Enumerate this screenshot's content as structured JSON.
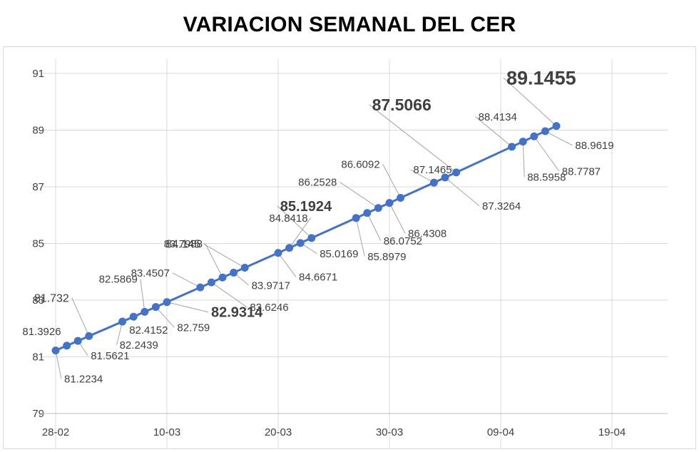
{
  "chart_data": {
    "type": "line",
    "title": "VARIACION SEMANAL DEL CER",
    "xlabel": "",
    "ylabel": "",
    "x_axis": {
      "type": "date",
      "min": "2022-02-28",
      "max": "2022-04-24",
      "ticks": [
        "2022-02-28",
        "2022-03-10",
        "2022-03-20",
        "2022-03-30",
        "2022-04-09",
        "2022-04-19"
      ],
      "tick_labels": [
        "28-02",
        "10-03",
        "20-03",
        "30-03",
        "09-04",
        "19-04"
      ]
    },
    "y_axis": {
      "min": 79,
      "max": 91,
      "ticks": [
        79,
        81,
        83,
        85,
        87,
        89,
        91
      ],
      "tick_labels": [
        "79",
        "81",
        "83",
        "85",
        "87",
        "89",
        "91"
      ]
    },
    "grid": {
      "horizontal": true,
      "vertical": true
    },
    "legend": "none",
    "series_color": "#4472c4",
    "series": [
      {
        "name": "",
        "points": [
          {
            "x": "2022-02-28",
            "y": 81.2234,
            "label": "81.2234"
          },
          {
            "x": "2022-03-01",
            "y": 81.3926,
            "label": "81.3926"
          },
          {
            "x": "2022-03-02",
            "y": 81.5621,
            "label": "81.5621"
          },
          {
            "x": "2022-03-03",
            "y": 81.732,
            "label": "81.732"
          },
          {
            "x": "2022-03-06",
            "y": 82.2439,
            "label": "82.2439"
          },
          {
            "x": "2022-03-07",
            "y": 82.4152,
            "label": "82.4152"
          },
          {
            "x": "2022-03-08",
            "y": 82.5869,
            "label": "82.5869"
          },
          {
            "x": "2022-03-09",
            "y": 82.759,
            "label": "82.759"
          },
          {
            "x": "2022-03-10",
            "y": 82.9314,
            "label": "82.9314"
          },
          {
            "x": "2022-03-13",
            "y": 83.4507,
            "label": "83.4507"
          },
          {
            "x": "2022-03-14",
            "y": 83.6246,
            "label": "83.6246"
          },
          {
            "x": "2022-03-15",
            "y": 83.7988,
            "label": "83.7988"
          },
          {
            "x": "2022-03-16",
            "y": 83.9717,
            "label": "83.9717"
          },
          {
            "x": "2022-03-17",
            "y": 84.145,
            "label": "84.145"
          },
          {
            "x": "2022-03-20",
            "y": 84.6671,
            "label": "84.6671"
          },
          {
            "x": "2022-03-21",
            "y": 84.8418,
            "label": "84.8418"
          },
          {
            "x": "2022-03-22",
            "y": 85.0169,
            "label": "85.0169"
          },
          {
            "x": "2022-03-23",
            "y": 85.1924,
            "label": "85.1924"
          },
          {
            "x": "2022-03-27",
            "y": 85.8979,
            "label": "85.8979"
          },
          {
            "x": "2022-03-28",
            "y": 86.0752,
            "label": "86.0752"
          },
          {
            "x": "2022-03-29",
            "y": 86.2528,
            "label": "86.2528"
          },
          {
            "x": "2022-03-30",
            "y": 86.4308,
            "label": "86.4308"
          },
          {
            "x": "2022-03-31",
            "y": 86.6092,
            "label": "86.6092"
          },
          {
            "x": "2022-04-03",
            "y": 87.1465,
            "label": "87.1465"
          },
          {
            "x": "2022-04-04",
            "y": 87.3264,
            "label": "87.3264"
          },
          {
            "x": "2022-04-05",
            "y": 87.5066,
            "label": "87.5066"
          },
          {
            "x": "2022-04-10",
            "y": 88.4134,
            "label": "88.4134"
          },
          {
            "x": "2022-04-11",
            "y": 88.5958,
            "label": "88.5958"
          },
          {
            "x": "2022-04-12",
            "y": 88.7787,
            "label": "88.7787"
          },
          {
            "x": "2022-04-13",
            "y": 88.9619,
            "label": "88.9619"
          },
          {
            "x": "2022-04-14",
            "y": 89.1455,
            "label": "89.1455"
          }
        ]
      }
    ]
  }
}
